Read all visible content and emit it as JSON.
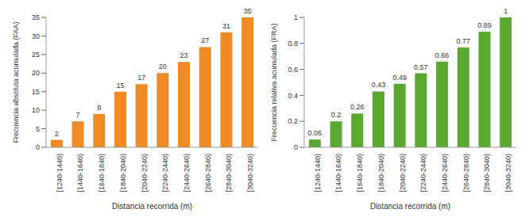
{
  "chart_data": [
    {
      "type": "bar",
      "categories": [
        "[1240-1440)",
        "[1440-1640)",
        "[1640-1840)",
        "[1840-2040)",
        "[2040-2240)",
        "[2240-2440)",
        "[2440-2640)",
        "[2640-2840)",
        "[2840-3040)",
        "[3040-3240)"
      ],
      "values": [
        2,
        7,
        9,
        15,
        17,
        20,
        23,
        27,
        31,
        35
      ],
      "color": "#f08a24",
      "xlabel": "Distancia recorrida (m)",
      "ylabel": "Frecuencia absoluta acumulada (FAA)",
      "ylim": [
        0,
        35
      ],
      "yticks": [
        0,
        5,
        10,
        15,
        20,
        25,
        30,
        35
      ],
      "data_labels": true,
      "grid": false
    },
    {
      "type": "bar",
      "categories": [
        "[1240-1440)",
        "[1440-1640)",
        "[1640-1840)",
        "[1840-2040)",
        "[2040-2240)",
        "[2240-2440)",
        "[2440-2640)",
        "[2640-2840)",
        "[2840-3040)",
        "[3040-3240)"
      ],
      "values": [
        0.06,
        0.2,
        0.26,
        0.43,
        0.49,
        0.57,
        0.66,
        0.77,
        0.89,
        1
      ],
      "color": "#5aa832",
      "xlabel": "Distancia recorrida (m)",
      "ylabel": "Frecuencia relativa acumulada (FRA)",
      "ylim": [
        0,
        1
      ],
      "yticks": [
        0,
        0.2,
        0.4,
        0.6,
        0.8,
        1
      ],
      "data_labels": true,
      "grid": false
    }
  ]
}
